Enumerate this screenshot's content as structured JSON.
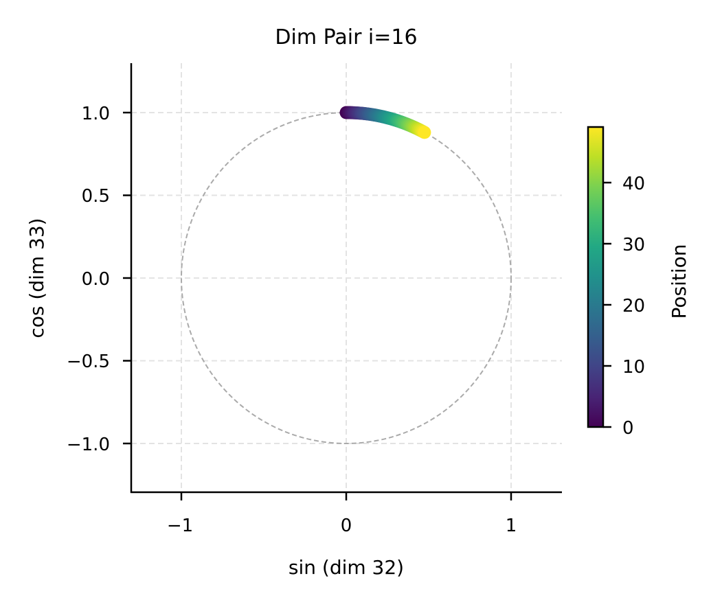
{
  "chart_data": {
    "type": "scatter",
    "title": "Dim Pair i=16",
    "xlabel": "sin (dim 32)",
    "ylabel": "cos (dim 33)",
    "xlim": [
      -1.3,
      1.3
    ],
    "ylim": [
      -1.3,
      1.3
    ],
    "xticks": [
      -1,
      0,
      1
    ],
    "xtick_labels": [
      "−1",
      "0",
      "1"
    ],
    "yticks": [
      1.0,
      0.5,
      0.0,
      -0.5,
      -1.0
    ],
    "ytick_labels": [
      "1.0",
      "0.5",
      "0.0",
      "−0.5",
      "−1.0"
    ],
    "grid": true,
    "reference_circle": {
      "radius": 1,
      "style": "dashed",
      "color": "#aaaaaa"
    },
    "series": [
      {
        "name": "positions",
        "colormap": "viridis",
        "positions_range": [
          0,
          48
        ],
        "angle_step_rad": 0.0103,
        "description": "points at (sin(p*0.0103), cos(p*0.0103)) for p = 0..48, colored by position"
      }
    ],
    "colorbar": {
      "label": "Position",
      "min": 0,
      "max": 48,
      "ticks": [
        0,
        10,
        20,
        30,
        40
      ],
      "tick_labels": [
        "0",
        "10",
        "20",
        "30",
        "40"
      ]
    }
  }
}
